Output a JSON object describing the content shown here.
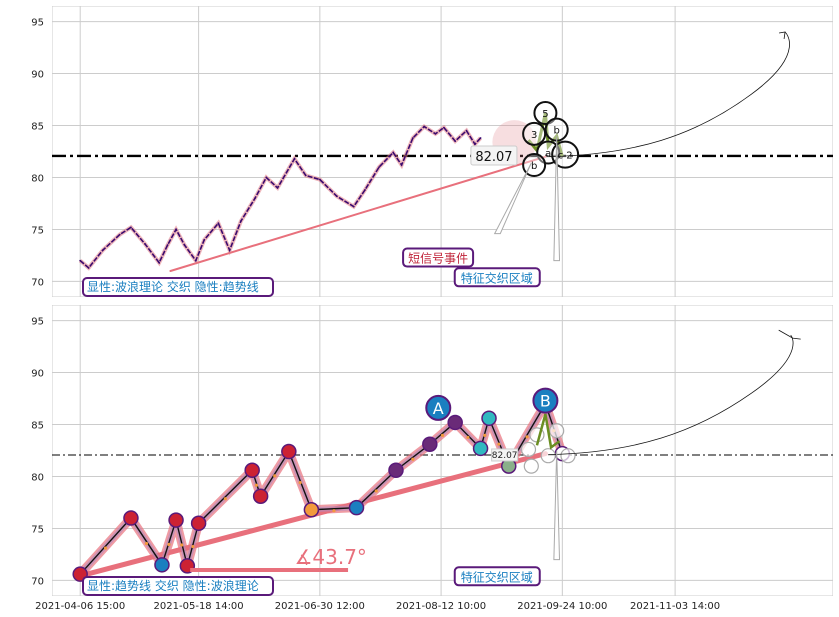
{
  "chart_data": [
    {
      "type": "line",
      "panel": "top",
      "ylim": [
        68.5,
        96.5
      ],
      "yticks": [
        70,
        75,
        80,
        85,
        90,
        95
      ],
      "grid": true,
      "price_series": [
        [
          "2021-04-06",
          72.0
        ],
        [
          "2021-04-09",
          71.3
        ],
        [
          "2021-04-14",
          73.0
        ],
        [
          "2021-04-20",
          74.5
        ],
        [
          "2021-04-24",
          75.2
        ],
        [
          "2021-04-29",
          73.6
        ],
        [
          "2021-05-04",
          71.8
        ],
        [
          "2021-05-07",
          73.5
        ],
        [
          "2021-05-10",
          75.0
        ],
        [
          "2021-05-13",
          73.5
        ],
        [
          "2021-05-17",
          72.0
        ],
        [
          "2021-05-20",
          74.0
        ],
        [
          "2021-05-25",
          75.6
        ],
        [
          "2021-05-29",
          73.0
        ],
        [
          "2021-06-02",
          75.8
        ],
        [
          "2021-06-07",
          78.0
        ],
        [
          "2021-06-11",
          80.0
        ],
        [
          "2021-06-15",
          79.0
        ],
        [
          "2021-06-21",
          81.8
        ],
        [
          "2021-06-25",
          80.2
        ],
        [
          "2021-06-30",
          79.8
        ],
        [
          "2021-07-06",
          78.2
        ],
        [
          "2021-07-12",
          77.2
        ],
        [
          "2021-07-16",
          78.8
        ],
        [
          "2021-07-21",
          81.0
        ],
        [
          "2021-07-26",
          82.4
        ],
        [
          "2021-07-29",
          81.2
        ],
        [
          "2021-08-02",
          83.8
        ],
        [
          "2021-08-06",
          84.9
        ],
        [
          "2021-08-10",
          84.2
        ],
        [
          "2021-08-13",
          84.8
        ],
        [
          "2021-08-17",
          83.5
        ],
        [
          "2021-08-21",
          84.5
        ],
        [
          "2021-08-24",
          83.2
        ],
        [
          "2021-08-26",
          83.8
        ]
      ],
      "trend_line": [
        [
          "2021-05-08",
          71.0
        ],
        [
          "2021-09-18",
          82.0
        ]
      ],
      "hline": 82.07,
      "hline_label": "82.07",
      "zone_circles": [
        {
          "label": "5",
          "date": "2021-09-18",
          "y": 86.2
        },
        {
          "label": "3",
          "date": "2021-09-14",
          "y": 84.2
        },
        {
          "label": "b",
          "date": "2021-09-22",
          "y": 84.6
        },
        {
          "label": "a",
          "date": "2021-09-19",
          "y": 82.4
        },
        {
          "label": "c 2",
          "date": "2021-09-25",
          "y": 82.2
        },
        {
          "label": "b",
          "date": "2021-09-14",
          "y": 81.2
        }
      ],
      "forecast_curve": [
        [
          "2021-09-19",
          82.0
        ],
        [
          "2021-10-20",
          82.2
        ],
        [
          "2021-11-10",
          84.0
        ],
        [
          "2021-11-30",
          88.0
        ],
        [
          "2021-12-12",
          94.0
        ]
      ],
      "legend_text": "显性:波浪理论 交织 隐性:趋势线",
      "annotations": [
        {
          "text": "短信号事件",
          "date": "2021-08-12",
          "y": 72.2
        },
        {
          "text": "特征交织区域",
          "date": "2021-08-25",
          "y": 70.3
        }
      ]
    },
    {
      "type": "line",
      "panel": "bottom",
      "ylim": [
        68.5,
        96.5
      ],
      "yticks": [
        70,
        75,
        80,
        85,
        90,
        95
      ],
      "grid": true,
      "wave_series": [
        [
          "2021-04-06",
          70.6
        ],
        [
          "2021-04-24",
          76.0
        ],
        [
          "2021-05-05",
          71.5
        ],
        [
          "2021-05-10",
          75.8
        ],
        [
          "2021-05-14",
          71.4
        ],
        [
          "2021-05-18",
          75.5
        ],
        [
          "2021-06-06",
          80.6
        ],
        [
          "2021-06-09",
          78.1
        ],
        [
          "2021-06-19",
          82.4
        ],
        [
          "2021-06-27",
          76.8
        ],
        [
          "2021-07-13",
          77.0
        ],
        [
          "2021-07-27",
          80.6
        ],
        [
          "2021-08-08",
          83.1
        ],
        [
          "2021-08-17",
          85.2
        ],
        [
          "2021-08-26",
          82.7
        ],
        [
          "2021-08-29",
          85.6
        ],
        [
          "2021-09-05",
          81.0
        ],
        [
          "2021-09-18",
          87.0
        ],
        [
          "2021-09-24",
          82.2
        ]
      ],
      "wave_labels": [
        {
          "label": "A",
          "date": "2021-08-11",
          "y": 86.6
        },
        {
          "label": "B",
          "date": "2021-09-18",
          "y": 87.3
        },
        {
          "label": "∡43.7°",
          "date": "2021-06-21",
          "y": 71.6
        }
      ],
      "trend_line": [
        [
          "2021-04-07",
          70.5
        ],
        [
          "2021-09-18",
          82.2
        ]
      ],
      "hline": 82.07,
      "hline_label": "82.07",
      "forecast_curve": [
        [
          "2021-09-19",
          82.1
        ],
        [
          "2021-10-20",
          82.3
        ],
        [
          "2021-11-10",
          84.2
        ],
        [
          "2021-11-30",
          88.0
        ],
        [
          "2021-12-14",
          93.6
        ]
      ],
      "legend_text": "显性:趋势线 交织 隐性:波浪理论",
      "annotations": [
        {
          "text": "特征交织区域",
          "date": "2021-08-25",
          "y": 70.3
        }
      ]
    }
  ],
  "x_axis": {
    "tick_labels": [
      "2021-04-06 15:00",
      "2021-05-18 14:00",
      "2021-06-30 12:00",
      "2021-08-12 10:00",
      "2021-09-24 10:00",
      "2021-11-03 14:00"
    ],
    "tick_dates": [
      "2021-04-06",
      "2021-05-18",
      "2021-06-30",
      "2021-08-12",
      "2021-09-24",
      "2021-11-03"
    ],
    "xlim": [
      "2021-03-27",
      "2021-12-29"
    ]
  },
  "colors": {
    "price": "#3a0a6e",
    "price_halo": "#e07a84",
    "wave": "#111111",
    "trend": "#e8707c",
    "hline": "#000000",
    "zone_green": "#6b8e23",
    "legend_text": "#1a7fc0",
    "legend_border": "#5a1a7a",
    "signal_text": "#c0253a",
    "circle_red": "#cc2233",
    "circle_teal": "#30b8c0",
    "circle_purple": "#6a2a78",
    "circle_orange": "#f29a3c",
    "circle_blue": "#1a7fc0",
    "circle_green": "#8ab08a",
    "grid": "#cccccc"
  }
}
